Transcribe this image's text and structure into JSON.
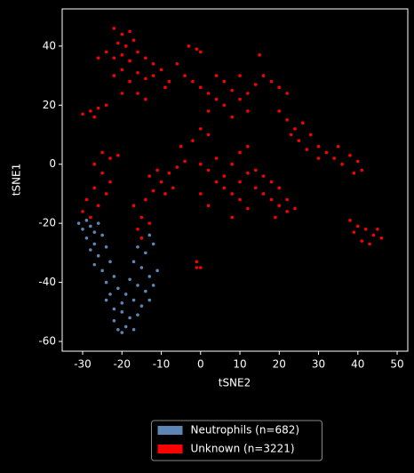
{
  "chart_data": {
    "type": "scatter",
    "xlabel": "tSNE2",
    "ylabel": "tSNE1",
    "xlim": [
      -35.2,
      52.7
    ],
    "ylim": [
      -63.3,
      52.6
    ],
    "xticks": [
      -30,
      -20,
      -10,
      0,
      10,
      20,
      30,
      40,
      50
    ],
    "yticks": [
      -60,
      -40,
      -20,
      0,
      20,
      40
    ],
    "legend": "below",
    "series": [
      {
        "name": "Neutrophils (n=682)",
        "color": "#5b86b5",
        "x": [
          -31,
          -30,
          -29,
          -28,
          -27,
          -26,
          -29,
          -27,
          -25,
          -28,
          -26,
          -24,
          -27,
          -25,
          -23,
          -24,
          -22,
          -23,
          -21,
          -24,
          -22,
          -20,
          -15,
          -13,
          -16,
          -14,
          -12,
          -17,
          -15,
          -13,
          -11,
          -18,
          -16,
          -14,
          -12,
          -19,
          -17,
          -15,
          -20,
          -18,
          -16,
          -19,
          -21,
          -17,
          -20,
          -13,
          -22
        ],
        "y": [
          -20,
          -22,
          -19,
          -21,
          -23,
          -20,
          -25,
          -27,
          -24,
          -29,
          -31,
          -28,
          -34,
          -36,
          -33,
          -40,
          -38,
          -44,
          -42,
          -46,
          -49,
          -47,
          -25,
          -24,
          -28,
          -30,
          -27,
          -33,
          -35,
          -38,
          -36,
          -39,
          -41,
          -43,
          -41,
          -44,
          -46,
          -48,
          -50,
          -52,
          -51,
          -55,
          -56,
          -56,
          -57,
          -46,
          -53
        ]
      },
      {
        "name": "Unknown (n=3221)",
        "color": "#ff0000",
        "x": [
          -22,
          -20,
          -18,
          -21,
          -19,
          -17,
          -24,
          -22,
          -20,
          -18,
          -16,
          -26,
          -14,
          -12,
          -20,
          -16,
          -14,
          -22,
          -18,
          -12,
          -10,
          -16,
          -14,
          -20,
          -9,
          -30,
          -28,
          -26,
          -24,
          -27,
          -3,
          -1,
          0,
          -6,
          -4,
          -2,
          0,
          2,
          4,
          6,
          8,
          10,
          12,
          14,
          16,
          18,
          20,
          22,
          15,
          6,
          -8,
          4,
          10,
          2,
          0,
          2,
          -2,
          12,
          8,
          20,
          22,
          24,
          26,
          25,
          28,
          30,
          32,
          34,
          36,
          38,
          40,
          41,
          30,
          27,
          23,
          35,
          39,
          0,
          2,
          4,
          6,
          8,
          10,
          12,
          14,
          16,
          18,
          20,
          22,
          24,
          10,
          12,
          8,
          14,
          6,
          4,
          16,
          18,
          20,
          22,
          10,
          12,
          0,
          2,
          8,
          19,
          -25,
          -23,
          -21,
          -27,
          -25,
          -23,
          -27,
          -29,
          -30,
          -26,
          -24,
          -28,
          -16,
          -15,
          -17,
          -14,
          -12,
          -10,
          -8,
          -6,
          -4,
          -13,
          -11,
          -15,
          -13,
          -9,
          -5,
          -7,
          38,
          40,
          42,
          44,
          46,
          41,
          43,
          45,
          39,
          -1,
          0,
          -1
        ],
        "y": [
          46,
          44,
          45,
          41,
          40,
          42,
          38,
          36,
          37,
          35,
          38,
          36,
          36,
          34,
          32,
          31,
          29,
          30,
          28,
          30,
          32,
          24,
          22,
          24,
          26,
          17,
          18,
          19,
          20,
          16,
          40,
          39,
          38,
          34,
          30,
          28,
          26,
          24,
          22,
          20,
          25,
          22,
          24,
          27,
          30,
          28,
          26,
          24,
          37,
          28,
          28,
          30,
          30,
          18,
          12,
          10,
          8,
          18,
          16,
          18,
          15,
          12,
          14,
          8,
          10,
          6,
          4,
          2,
          0,
          3,
          1,
          -2,
          2,
          5,
          10,
          6,
          -3,
          0,
          -2,
          2,
          -4,
          0,
          -6,
          -3,
          -8,
          -10,
          -12,
          -14,
          -16,
          -15,
          -12,
          -15,
          -10,
          -2,
          -8,
          -6,
          -4,
          -6,
          -8,
          -12,
          4,
          6,
          -10,
          -14,
          -18,
          -18,
          4,
          2,
          3,
          0,
          -3,
          -6,
          -8,
          -12,
          -16,
          -14,
          -10,
          -18,
          -22,
          -18,
          -14,
          -12,
          -9,
          -6,
          -3,
          -1,
          1,
          -4,
          -2,
          -25,
          -20,
          -10,
          6,
          -8,
          -19,
          -21,
          -22,
          -24,
          -25,
          -26,
          -27,
          -22,
          -23,
          -33,
          -35,
          -35
        ]
      }
    ]
  }
}
